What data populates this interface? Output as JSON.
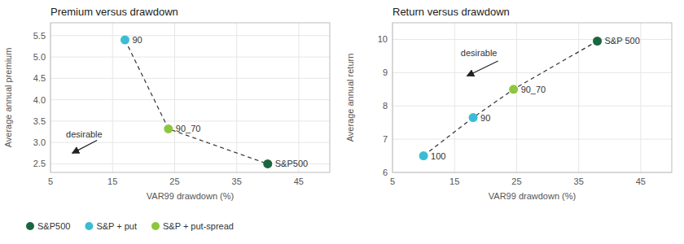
{
  "chart_data": [
    {
      "type": "scatter",
      "title": "Premium versus drawdown",
      "x_label": "VAR99 drawdown (%)",
      "y_label": "Average annual premium",
      "xlim": [
        5,
        50
      ],
      "ylim": [
        2.3,
        5.8
      ],
      "xticks": [
        5,
        15,
        25,
        35,
        45
      ],
      "yticks": [
        2.5,
        {
          "value": 3.0,
          "label": "3.0"
        },
        3.5,
        {
          "value": 4.0,
          "label": "4.0"
        },
        4.5,
        {
          "value": 5.0,
          "label": "5.0"
        },
        5.5
      ],
      "grid": true,
      "legend": "bottom",
      "series": [
        {
          "name": "S&P500",
          "type": "scatter",
          "color": "#1a6640",
          "x": [
            40
          ],
          "values": [
            2.5
          ],
          "annotations": [
            "S&P500"
          ]
        },
        {
          "name": "S&P + put",
          "type": "scatter",
          "color": "#3bbcd4",
          "x": [
            17
          ],
          "values": [
            5.4
          ],
          "annotations": [
            "90"
          ]
        },
        {
          "name": "S&P + put-spread",
          "type": "scatter",
          "color": "#8dc63f",
          "x": [
            24
          ],
          "values": [
            3.32
          ],
          "annotations": [
            "90_70"
          ]
        },
        {
          "type": "line",
          "line_style": "dashed",
          "color": "#333333",
          "x": [
            17,
            24,
            40
          ],
          "values": [
            5.4,
            3.32,
            2.5
          ]
        }
      ],
      "annotations": [
        {
          "text": "desirable",
          "x": 7.5,
          "y": 3.12,
          "arrow_from": [
            12.5,
            3.05
          ],
          "arrow_to": [
            8.5,
            2.75
          ]
        }
      ]
    },
    {
      "type": "scatter",
      "title": "Return versus drawdown",
      "x_label": "VAR99 drawdown (%)",
      "y_label": "Average annual return",
      "xlim": [
        5,
        50
      ],
      "ylim": [
        6.0,
        10.5
      ],
      "xticks": [
        5,
        15,
        25,
        35,
        45
      ],
      "yticks": [
        6,
        7,
        8,
        9,
        10
      ],
      "grid": true,
      "series": [
        {
          "type": "scatter",
          "color": "#1a6640",
          "x": [
            38
          ],
          "values": [
            9.95
          ],
          "annotations": [
            "S&P 500"
          ]
        },
        {
          "type": "scatter",
          "color": "#3bbcd4",
          "x": [
            18,
            10
          ],
          "values": [
            7.65,
            6.5
          ],
          "annotations": [
            "90",
            "100"
          ]
        },
        {
          "type": "scatter",
          "color": "#8dc63f",
          "x": [
            24.5
          ],
          "values": [
            8.5
          ],
          "annotations": [
            "90_70"
          ]
        },
        {
          "type": "line",
          "line_style": "dashed",
          "color": "#333333",
          "x": [
            10,
            18,
            24.5,
            38
          ],
          "values": [
            6.5,
            7.65,
            8.5,
            9.95
          ]
        }
      ],
      "annotations": [
        {
          "text": "desirable",
          "x": 16,
          "y": 9.5,
          "arrow_from": [
            22,
            9.35
          ],
          "arrow_to": [
            17,
            8.9
          ]
        }
      ]
    }
  ]
}
